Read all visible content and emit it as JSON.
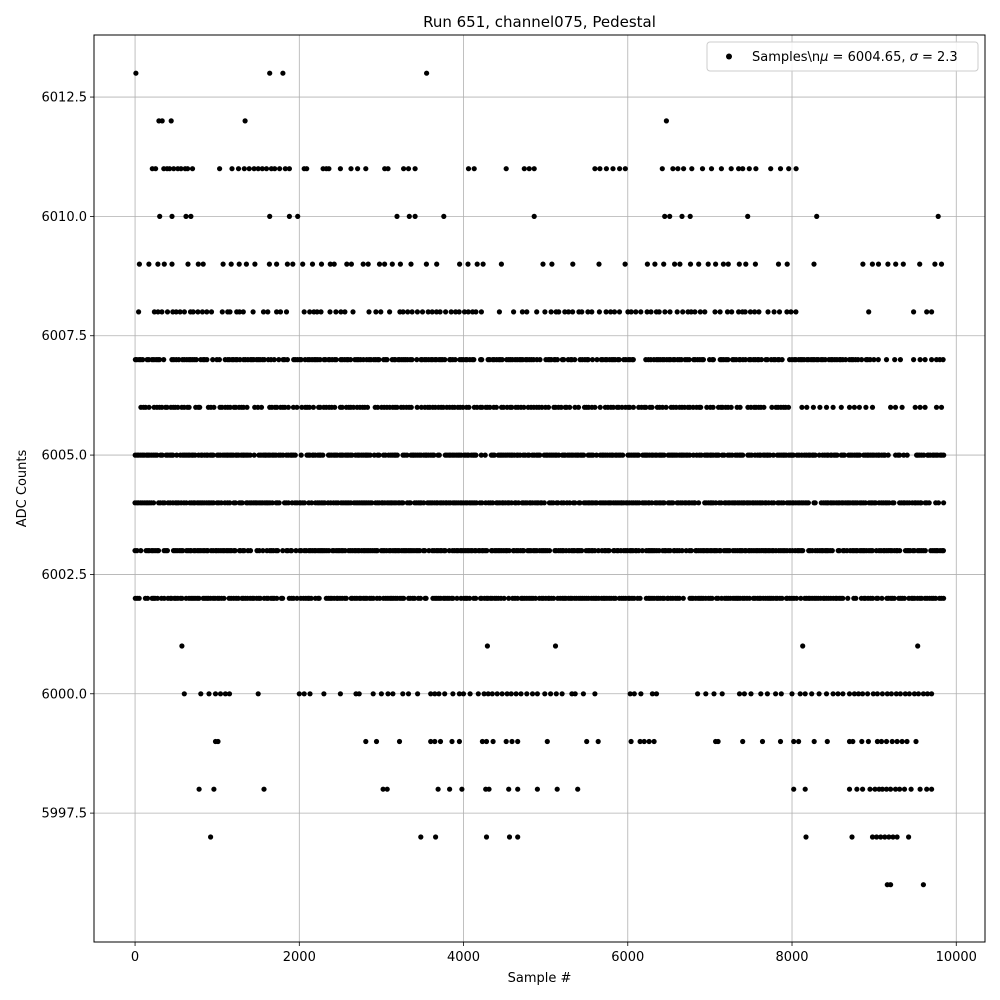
{
  "chart_data": {
    "type": "scatter",
    "title": "Run 651, channel075, Pedestal",
    "xlabel": "Sample #",
    "ylabel": "ADC Counts",
    "xlim": [
      -500,
      10350
    ],
    "ylim": [
      5994.8,
      6013.8
    ],
    "xticks": [
      0,
      2000,
      4000,
      6000,
      8000,
      10000
    ],
    "xtick_labels": [
      "0",
      "2000",
      "4000",
      "6000",
      "8000",
      "10000"
    ],
    "yticks": [
      5997.5,
      6000.0,
      6002.5,
      6005.0,
      6007.5,
      6010.0,
      6012.5
    ],
    "ytick_labels": [
      "5997.5",
      "6000.0",
      "6002.5",
      "6005.0",
      "6007.5",
      "6010.0",
      "6012.5"
    ],
    "grid": true,
    "legend": {
      "location": "top-right",
      "label_prefix": "Samples\\n",
      "label_mu": "μ",
      "label_mid": " = 6004.65, ",
      "label_sigma": "σ",
      "label_suffix": " = 2.3"
    },
    "marker_color": "#000000",
    "series": [
      {
        "levels": [
          {
            "y": 6013,
            "x": [
              10,
              1640,
              1800,
              3550
            ]
          },
          {
            "y": 6012,
            "x": [
              290,
              330,
              440,
              1340,
              6470
            ]
          },
          {
            "y": 6011,
            "x": [
              210,
              250,
              350,
              390,
              420,
              470,
              520,
              560,
              610,
              640,
              700,
              1030,
              1180,
              1260,
              1330,
              1390,
              1450,
              1500,
              1550,
              1600,
              1660,
              1700,
              1760,
              1830,
              1880,
              2060,
              2090,
              2290,
              2330,
              2360,
              2500,
              2630,
              2710,
              2810,
              3040,
              3080,
              3270,
              3330,
              3410,
              4060,
              4130,
              4520,
              4740,
              4800,
              4860,
              5600,
              5660,
              5740,
              5820,
              5900,
              5970,
              6420,
              6550,
              6610,
              6680,
              6780,
              6910,
              7020,
              7140,
              7260,
              7350,
              7400,
              7480,
              7560,
              7740,
              7860,
              7960,
              8050
            ]
          },
          {
            "y": 6010,
            "x": [
              300,
              450,
              620,
              680,
              1640,
              1880,
              1980,
              3190,
              3340,
              3410,
              3760,
              4860,
              6450,
              6510,
              6660,
              6760,
              7460,
              8300,
              9780
            ]
          },
          {
            "y": 6009,
            "dense": [
              50,
              9550
            ],
            "density": 0.01,
            "extra": [
              9740,
              9820
            ],
            "gaps": [
              [
                3700,
                3900
              ],
              [
                4300,
                6300,
                0.4
              ],
              [
                7300,
                9000,
                0.45
              ]
            ]
          },
          {
            "y": 6008,
            "dense": [
              0,
              9150
            ],
            "density": 0.018,
            "extra": [
              9480,
              9640,
              9700
            ],
            "gaps": [
              [
                4300,
                5000,
                0.45
              ],
              [
                8100,
                9150,
                0.4
              ]
            ]
          },
          {
            "y": 6007,
            "dense": [
              0,
              9050
            ],
            "density": 0.04,
            "extra": [
              9150,
              9250,
              9320,
              9480,
              9560,
              9620,
              9700,
              9760,
              9800,
              9840
            ],
            "gaps": []
          },
          {
            "y": 6006,
            "dense": [
              30,
              8000
            ],
            "density": 0.03,
            "extra": [
              8120,
              8180,
              8260,
              8340,
              8420,
              8500,
              8600,
              8700,
              8760,
              8820,
              8900,
              8980,
              9200,
              9260,
              9340,
              9500,
              9560,
              9620,
              9760,
              9820
            ],
            "gaps": [
              [
                5400,
                5700,
                0.6
              ]
            ]
          },
          {
            "y": 6005,
            "dense": [
              0,
              9850
            ],
            "density": 0.045,
            "extra": [],
            "gaps": [
              [
                9150,
                9500,
                0.35
              ]
            ]
          },
          {
            "y": 6004,
            "dense": [
              0,
              9850
            ],
            "density": 0.045,
            "extra": [],
            "gaps": []
          },
          {
            "y": 6003,
            "dense": [
              0,
              9850
            ],
            "density": 0.045,
            "extra": [],
            "gaps": []
          },
          {
            "y": 6002,
            "dense": [
              0,
              9850
            ],
            "density": 0.04,
            "extra": [],
            "gaps": [
              [
                1700,
                2000,
                0.5
              ]
            ]
          },
          {
            "y": 6001,
            "x": [
              570,
              4290,
              5120,
              8130,
              9530
            ]
          },
          {
            "y": 6000,
            "x": [
              600,
              800,
              900,
              980,
              1040,
              1100,
              1150,
              1500,
              2000,
              2060,
              2130,
              2300,
              2500,
              2690,
              2730,
              2900,
              3000,
              3080,
              3140,
              3260,
              3330,
              3440,
              3600,
              3650,
              3700,
              3770,
              3870,
              3950,
              4000,
              4080,
              4180,
              4250,
              4300,
              4350,
              4410,
              4470,
              4530,
              4580,
              4640,
              4700,
              4770,
              4840,
              4900,
              4990,
              5060,
              5130,
              5200,
              5320,
              5360,
              5460,
              5600,
              6030,
              6080,
              6160,
              6300,
              6350,
              6850,
              6950,
              7050,
              7150,
              7360,
              7420,
              7500,
              7620,
              7700,
              7800,
              7870,
              8000,
              8100,
              8160,
              8240,
              8330,
              8420,
              8500,
              8560,
              8620,
              8700,
              8760,
              8810,
              8860,
              8920,
              8990,
              9040,
              9100,
              9160,
              9210,
              9270,
              9320,
              9380,
              9430,
              9490,
              9540,
              9600,
              9650,
              9700
            ]
          },
          {
            "y": 5999,
            "x": [
              980,
              1010,
              2810,
              2940,
              3220,
              3600,
              3650,
              3720,
              3860,
              3950,
              4230,
              4280,
              4360,
              4520,
              4590,
              4660,
              5020,
              5500,
              5640,
              6040,
              6150,
              6200,
              6260,
              6320,
              7070,
              7100,
              7400,
              7640,
              7860,
              8020,
              8080,
              8270,
              8430,
              8700,
              8740,
              8850,
              8930,
              9040,
              9090,
              9150,
              9220,
              9280,
              9340,
              9400,
              9510
            ]
          },
          {
            "y": 5998,
            "x": [
              780,
              960,
              1570,
              3020,
              3070,
              3690,
              3830,
              3980,
              4270,
              4310,
              4550,
              4660,
              4900,
              5140,
              5390,
              8020,
              8160,
              8700,
              8790,
              8860,
              8950,
              9010,
              9060,
              9100,
              9150,
              9200,
              9260,
              9310,
              9370,
              9450,
              9560,
              9640,
              9700
            ]
          },
          {
            "y": 5997,
            "x": [
              920,
              3480,
              3660,
              4280,
              4560,
              4660,
              8170,
              8730,
              8980,
              9030,
              9080,
              9130,
              9180,
              9230,
              9280,
              9420
            ]
          },
          {
            "y": 5996,
            "x": [
              9160,
              9200,
              9600
            ]
          }
        ]
      }
    ]
  }
}
